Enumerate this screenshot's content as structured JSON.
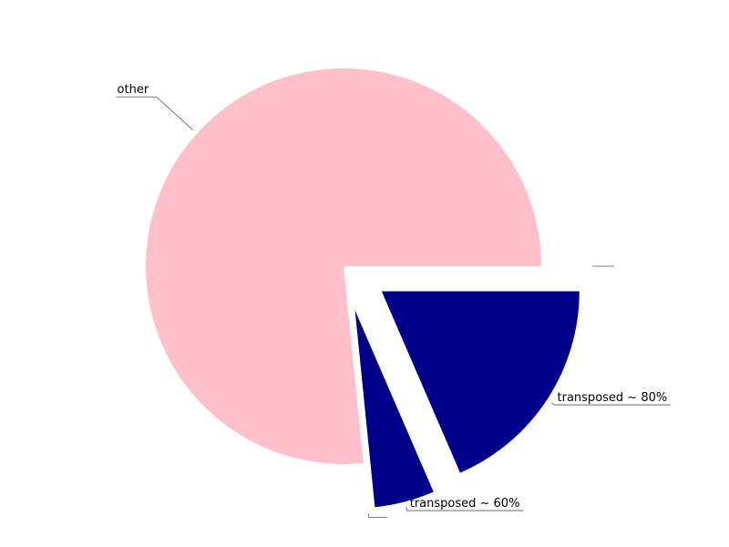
{
  "chart_data": {
    "type": "pie",
    "title": "",
    "slices": [
      {
        "label": "",
        "value": 0.0,
        "color": "#00008b",
        "exploded": true
      },
      {
        "label": "transposed ~ 80%",
        "value": 18.5,
        "color": "#00008b",
        "exploded": true
      },
      {
        "label": "transposed ~ 60%",
        "value": 4.9,
        "color": "#00008b",
        "exploded": true
      },
      {
        "label": "",
        "value": 0.0,
        "color": "#00008b",
        "exploded": true
      },
      {
        "label": "other",
        "value": 76.6,
        "color": "#ffc0cb",
        "exploded": false
      }
    ],
    "legend": "none"
  }
}
